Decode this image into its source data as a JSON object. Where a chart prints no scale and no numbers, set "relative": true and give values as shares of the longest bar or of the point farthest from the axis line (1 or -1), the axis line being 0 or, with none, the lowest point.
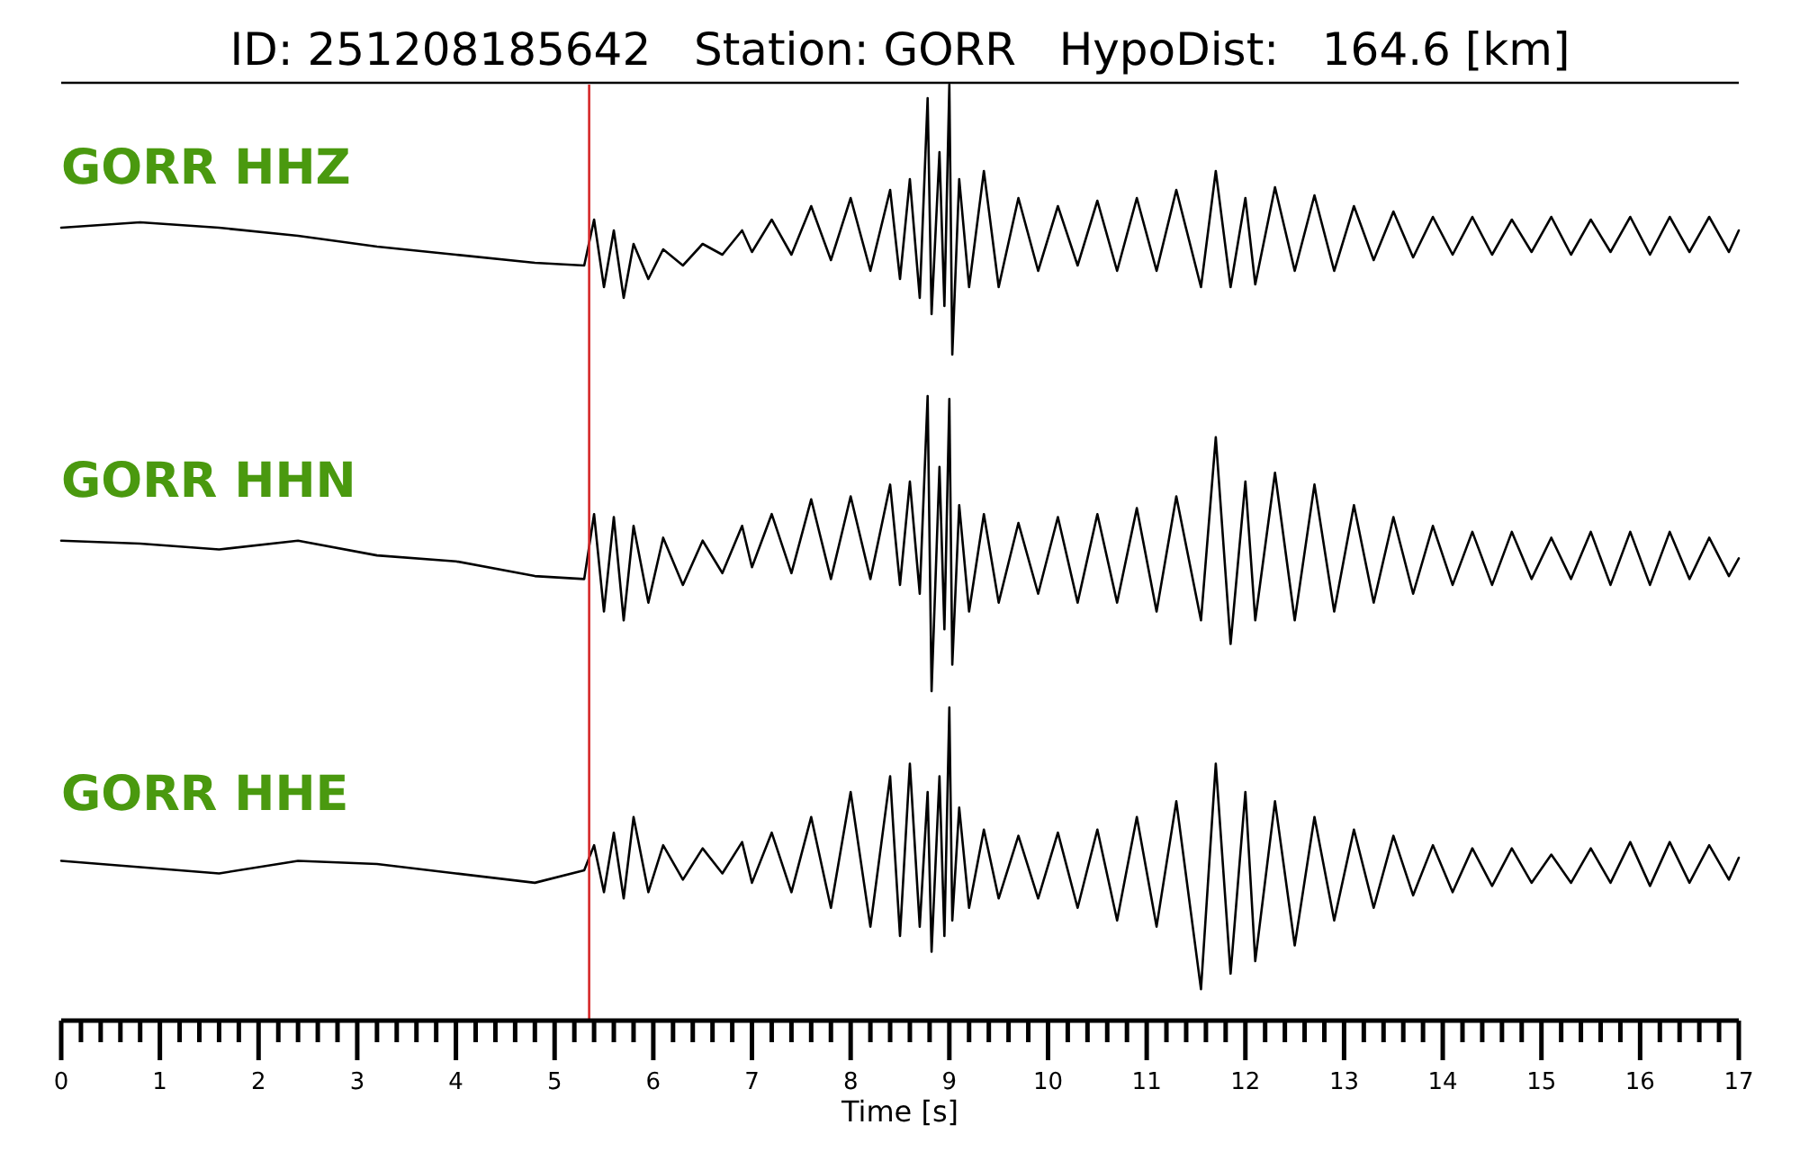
{
  "chart_data": [
    {
      "type": "line",
      "title": "ID: 251208185642   Station: GORR   HypoDist:   164.6 [km]",
      "annotations": [
        "GORR HHZ"
      ],
      "relative": true,
      "tick_labels": false,
      "xlim": [
        0,
        17
      ],
      "x": [
        0,
        0.8,
        1.6,
        2.4,
        3.2,
        4.0,
        4.8,
        5.3,
        5.4,
        5.5,
        5.6,
        5.7,
        5.8,
        5.95,
        6.1,
        6.3,
        6.5,
        6.7,
        6.9,
        7.0,
        7.2,
        7.4,
        7.6,
        7.8,
        8.0,
        8.2,
        8.4,
        8.5,
        8.6,
        8.7,
        8.78,
        8.82,
        8.9,
        8.95,
        9.0,
        9.03,
        9.1,
        9.2,
        9.35,
        9.5,
        9.7,
        9.9,
        10.1,
        10.3,
        10.5,
        10.7,
        10.9,
        11.1,
        11.3,
        11.55,
        11.7,
        11.85,
        12.0,
        12.1,
        12.3,
        12.5,
        12.7,
        12.9,
        13.1,
        13.3,
        13.5,
        13.7,
        13.9,
        14.1,
        14.3,
        14.5,
        14.7,
        14.9,
        15.1,
        15.3,
        15.5,
        15.7,
        15.9,
        16.1,
        16.3,
        16.5,
        16.7,
        16.9,
        17
      ],
      "series": [
        {
          "color": "#000000",
          "values": [
            0.47,
            0.49,
            0.47,
            0.44,
            0.4,
            0.37,
            0.34,
            0.33,
            0.5,
            0.25,
            0.46,
            0.21,
            0.41,
            0.28,
            0.39,
            0.33,
            0.41,
            0.37,
            0.46,
            0.38,
            0.5,
            0.37,
            0.55,
            0.35,
            0.58,
            0.31,
            0.61,
            0.28,
            0.65,
            0.21,
            0.95,
            0.15,
            0.75,
            0.18,
            1,
            0,
            0.65,
            0.25,
            0.68,
            0.25,
            0.58,
            0.31,
            0.55,
            0.33,
            0.57,
            0.31,
            0.58,
            0.31,
            0.61,
            0.25,
            0.68,
            0.25,
            0.58,
            0.26,
            0.62,
            0.31,
            0.59,
            0.31,
            0.55,
            0.35,
            0.53,
            0.36,
            0.51,
            0.37,
            0.51,
            0.37,
            0.5,
            0.38,
            0.51,
            0.37,
            0.5,
            0.38,
            0.51,
            0.37,
            0.51,
            0.38,
            0.51,
            0.38,
            0.46
          ]
        }
      ],
      "ref_lines": [
        {
          "axis": "x",
          "value": 5.35,
          "color": "#d62728"
        }
      ]
    },
    {
      "type": "line",
      "annotations": [
        "GORR HHN"
      ],
      "relative": true,
      "tick_labels": false,
      "xlim": [
        0,
        17
      ],
      "x": [
        0,
        0.8,
        1.6,
        2.4,
        3.2,
        4.0,
        4.8,
        5.3,
        5.4,
        5.5,
        5.6,
        5.7,
        5.8,
        5.95,
        6.1,
        6.3,
        6.5,
        6.7,
        6.9,
        7.0,
        7.2,
        7.4,
        7.6,
        7.8,
        8.0,
        8.2,
        8.4,
        8.5,
        8.6,
        8.7,
        8.78,
        8.82,
        8.9,
        8.95,
        9.0,
        9.03,
        9.1,
        9.2,
        9.35,
        9.5,
        9.7,
        9.9,
        10.1,
        10.3,
        10.5,
        10.7,
        10.9,
        11.1,
        11.3,
        11.55,
        11.7,
        11.85,
        12.0,
        12.1,
        12.3,
        12.5,
        12.7,
        12.9,
        13.1,
        13.3,
        13.5,
        13.7,
        13.9,
        14.1,
        14.3,
        14.5,
        14.7,
        14.9,
        15.1,
        15.3,
        15.5,
        15.7,
        15.9,
        16.1,
        16.3,
        16.5,
        16.7,
        16.9,
        17
      ],
      "series": [
        {
          "color": "#000000",
          "values": [
            0.51,
            0.5,
            0.48,
            0.51,
            0.46,
            0.44,
            0.39,
            0.38,
            0.6,
            0.27,
            0.59,
            0.24,
            0.56,
            0.3,
            0.52,
            0.36,
            0.51,
            0.4,
            0.56,
            0.42,
            0.6,
            0.4,
            0.65,
            0.38,
            0.66,
            0.38,
            0.7,
            0.36,
            0.71,
            0.33,
            1,
            0,
            0.76,
            0.21,
            0.99,
            0.09,
            0.63,
            0.27,
            0.6,
            0.3,
            0.57,
            0.33,
            0.59,
            0.3,
            0.6,
            0.3,
            0.62,
            0.27,
            0.66,
            0.24,
            0.86,
            0.16,
            0.71,
            0.24,
            0.74,
            0.24,
            0.7,
            0.27,
            0.63,
            0.3,
            0.59,
            0.33,
            0.56,
            0.36,
            0.54,
            0.36,
            0.54,
            0.38,
            0.52,
            0.38,
            0.54,
            0.36,
            0.54,
            0.36,
            0.54,
            0.38,
            0.52,
            0.39,
            0.45
          ]
        }
      ],
      "ref_lines": [
        {
          "axis": "x",
          "value": 5.35,
          "color": "#d62728"
        }
      ]
    },
    {
      "type": "line",
      "annotations": [
        "GORR HHE"
      ],
      "xlabel": "Time [s]",
      "relative": true,
      "tick_labels": "x",
      "xlim": [
        0,
        17
      ],
      "xticks": [
        0,
        1,
        2,
        3,
        4,
        5,
        6,
        7,
        8,
        9,
        10,
        11,
        12,
        13,
        14,
        15,
        16,
        17,
        {
          "value": 0.2,
          "label": null
        },
        {
          "value": 0.4,
          "label": null
        },
        {
          "value": 0.6,
          "label": null
        },
        {
          "value": 0.8,
          "label": null
        },
        {
          "value": 1.2,
          "label": null
        },
        {
          "value": 1.4,
          "label": null
        },
        {
          "value": 1.6,
          "label": null
        },
        {
          "value": 1.8,
          "label": null
        },
        {
          "value": 2.2,
          "label": null
        },
        {
          "value": 2.4,
          "label": null
        },
        {
          "value": 2.6,
          "label": null
        },
        {
          "value": 2.8,
          "label": null
        },
        {
          "value": 3.2,
          "label": null
        },
        {
          "value": 3.4,
          "label": null
        },
        {
          "value": 3.6,
          "label": null
        },
        {
          "value": 3.8,
          "label": null
        },
        {
          "value": 4.2,
          "label": null
        },
        {
          "value": 4.4,
          "label": null
        },
        {
          "value": 4.6,
          "label": null
        },
        {
          "value": 4.8,
          "label": null
        },
        {
          "value": 5.2,
          "label": null
        },
        {
          "value": 5.4,
          "label": null
        },
        {
          "value": 5.6,
          "label": null
        },
        {
          "value": 5.8,
          "label": null
        },
        {
          "value": 6.2,
          "label": null
        },
        {
          "value": 6.4,
          "label": null
        },
        {
          "value": 6.6,
          "label": null
        },
        {
          "value": 6.8,
          "label": null
        },
        {
          "value": 7.2,
          "label": null
        },
        {
          "value": 7.4,
          "label": null
        },
        {
          "value": 7.6,
          "label": null
        },
        {
          "value": 7.8,
          "label": null
        },
        {
          "value": 8.2,
          "label": null
        },
        {
          "value": 8.4,
          "label": null
        },
        {
          "value": 8.6,
          "label": null
        },
        {
          "value": 8.8,
          "label": null
        },
        {
          "value": 9.2,
          "label": null
        },
        {
          "value": 9.4,
          "label": null
        },
        {
          "value": 9.6,
          "label": null
        },
        {
          "value": 9.8,
          "label": null
        },
        {
          "value": 10.2,
          "label": null
        },
        {
          "value": 10.4,
          "label": null
        },
        {
          "value": 10.6,
          "label": null
        },
        {
          "value": 10.8,
          "label": null
        },
        {
          "value": 11.2,
          "label": null
        },
        {
          "value": 11.4,
          "label": null
        },
        {
          "value": 11.6,
          "label": null
        },
        {
          "value": 11.8,
          "label": null
        },
        {
          "value": 12.2,
          "label": null
        },
        {
          "value": 12.4,
          "label": null
        },
        {
          "value": 12.6,
          "label": null
        },
        {
          "value": 12.8,
          "label": null
        },
        {
          "value": 13.2,
          "label": null
        },
        {
          "value": 13.4,
          "label": null
        },
        {
          "value": 13.6,
          "label": null
        },
        {
          "value": 13.8,
          "label": null
        },
        {
          "value": 14.2,
          "label": null
        },
        {
          "value": 14.4,
          "label": null
        },
        {
          "value": 14.6,
          "label": null
        },
        {
          "value": 14.8,
          "label": null
        },
        {
          "value": 15.2,
          "label": null
        },
        {
          "value": 15.4,
          "label": null
        },
        {
          "value": 15.6,
          "label": null
        },
        {
          "value": 15.8,
          "label": null
        },
        {
          "value": 16.2,
          "label": null
        },
        {
          "value": 16.4,
          "label": null
        },
        {
          "value": 16.6,
          "label": null
        },
        {
          "value": 16.8,
          "label": null
        }
      ],
      "x": [
        0,
        0.8,
        1.6,
        2.4,
        3.2,
        4.0,
        4.8,
        5.3,
        5.4,
        5.5,
        5.6,
        5.7,
        5.8,
        5.95,
        6.1,
        6.3,
        6.5,
        6.7,
        6.9,
        7.0,
        7.2,
        7.4,
        7.6,
        7.8,
        8.0,
        8.2,
        8.4,
        8.5,
        8.6,
        8.7,
        8.78,
        8.82,
        8.9,
        8.95,
        9.0,
        9.03,
        9.1,
        9.2,
        9.35,
        9.5,
        9.7,
        9.9,
        10.1,
        10.3,
        10.5,
        10.7,
        10.9,
        11.1,
        11.3,
        11.55,
        11.7,
        11.85,
        12.0,
        12.1,
        12.3,
        12.5,
        12.7,
        12.9,
        13.1,
        13.3,
        13.5,
        13.7,
        13.9,
        14.1,
        14.3,
        14.5,
        14.7,
        14.9,
        15.1,
        15.3,
        15.5,
        15.7,
        15.9,
        16.1,
        16.3,
        16.5,
        16.7,
        16.9,
        17
      ],
      "series": [
        {
          "color": "#000000",
          "values": [
            0.51,
            0.49,
            0.47,
            0.51,
            0.5,
            0.47,
            0.44,
            0.48,
            0.56,
            0.41,
            0.6,
            0.39,
            0.65,
            0.41,
            0.56,
            0.45,
            0.55,
            0.47,
            0.57,
            0.44,
            0.6,
            0.41,
            0.65,
            0.36,
            0.73,
            0.3,
            0.78,
            0.27,
            0.82,
            0.3,
            0.73,
            0.22,
            0.78,
            0.27,
            1,
            0.32,
            0.68,
            0.36,
            0.61,
            0.39,
            0.59,
            0.39,
            0.6,
            0.36,
            0.61,
            0.32,
            0.65,
            0.3,
            0.7,
            0.1,
            0.82,
            0.15,
            0.73,
            0.19,
            0.7,
            0.24,
            0.65,
            0.32,
            0.61,
            0.36,
            0.59,
            0.4,
            0.56,
            0.41,
            0.55,
            0.43,
            0.55,
            0.44,
            0.53,
            0.44,
            0.55,
            0.44,
            0.57,
            0.43,
            0.57,
            0.44,
            0.56,
            0.45,
            0.52
          ]
        }
      ],
      "ref_lines": [
        {
          "axis": "x",
          "value": 5.35,
          "color": "#d62728"
        }
      ]
    }
  ]
}
